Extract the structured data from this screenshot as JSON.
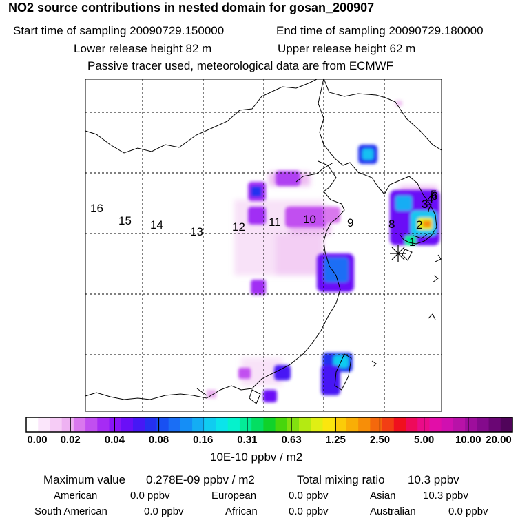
{
  "header": {
    "title": "NO2 source contributions in nested domain for gosan_200907",
    "start_label": "Start time of sampling 20090729.150000",
    "end_label": "End time of sampling 20090729.180000",
    "lower_label": "Lower release height   82 m",
    "upper_label": "Upper release height   62 m",
    "note": "Passive tracer used, meteorological data are from ECMWF"
  },
  "map": {
    "trajectory_points": [
      "16",
      "15",
      "14",
      "13",
      "12",
      "11",
      "10",
      "9",
      "8",
      "7",
      "6",
      "5",
      "4",
      "3",
      "2",
      "1"
    ],
    "receptor_marker": "asterisk"
  },
  "colorbar": {
    "labels": [
      "0.00",
      "0.02",
      "0.04",
      "0.08",
      "0.16",
      "0.31",
      "0.63",
      "1.25",
      "2.50",
      "5.00",
      "10.00",
      "20.00"
    ],
    "colors": [
      "#ffffff",
      "#fbe6fb",
      "#f6ccf6",
      "#eeb2f2",
      "#d978ee",
      "#c14ff0",
      "#a62bf4",
      "#8a15f7",
      "#6a0ff7",
      "#4618f5",
      "#2430f0",
      "#1850f2",
      "#1a6ef5",
      "#158ef6",
      "#14adf4",
      "#10ccf0",
      "#0be4ea",
      "#05f2cc",
      "#04ec98",
      "#04de62",
      "#10d22a",
      "#48d60c",
      "#82e010",
      "#b4ea12",
      "#e0ef14",
      "#fbe60e",
      "#fbcc08",
      "#f9ae06",
      "#f78e08",
      "#f4680c",
      "#f23e14",
      "#f0101e",
      "#ee0a5a",
      "#ea0c88",
      "#e20ea8",
      "#d010b0",
      "#b812a8",
      "#9e0e9c",
      "#840a8c",
      "#6a0674",
      "#50045a"
    ],
    "units": "10E-10 ppbv / m2"
  },
  "summary": {
    "max_label": "Maximum value",
    "max_value": "0.278E-09 ppbv / m2",
    "total_label": "Total mixing ratio",
    "total_value": "10.3 ppbv",
    "regions": [
      {
        "name": "American",
        "value": "0.0 ppbv"
      },
      {
        "name": "European",
        "value": "0.0 ppbv"
      },
      {
        "name": "Asian",
        "value": "10.3 ppbv"
      },
      {
        "name": "South American",
        "value": "0.0 ppbv"
      },
      {
        "name": "African",
        "value": "0.0 ppbv"
      },
      {
        "name": "Australian",
        "value": "0.0 ppbv"
      }
    ]
  }
}
